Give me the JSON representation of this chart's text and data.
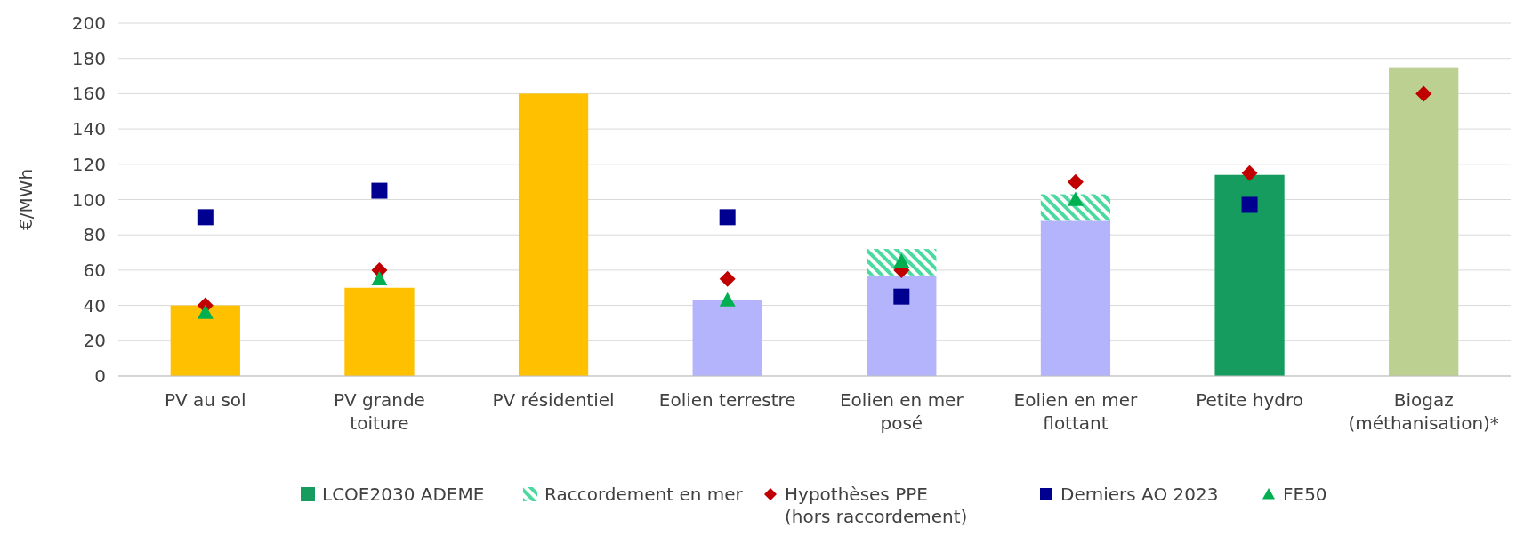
{
  "chart_data": {
    "type": "bar",
    "ylabel": "€/MWh",
    "categories": [
      "PV au sol",
      "PV grande\ntoiture",
      "PV résidentiel",
      "Eolien terrestre",
      "Eolien en mer\nposé",
      "Eolien en mer\nflottant",
      "Petite hydro",
      "Biogaz\n(méthanisation)*"
    ],
    "stacked": true,
    "ylim": [
      0,
      200
    ],
    "yticks": [
      0,
      20,
      40,
      60,
      80,
      100,
      120,
      140,
      160,
      180,
      200
    ],
    "grid": "y",
    "legend": "bottom",
    "series": [
      {
        "name": "LCOE2030 ADEME",
        "color": "#179c5f",
        "colors": [
          "#ffc000",
          "#ffc000",
          "#ffc000",
          "#b4b4fc",
          "#b4b4fc",
          "#b4b4fc",
          "#179c5f",
          "#bcd092"
        ],
        "values": [
          40,
          50,
          160,
          43,
          57,
          88,
          114,
          175
        ]
      },
      {
        "name": "Raccordement en mer",
        "color": "#4cd9a0",
        "values": [
          null,
          null,
          null,
          null,
          15,
          15,
          null,
          null
        ]
      },
      {
        "name": "Hypothèses PPE\n(hors raccordement)",
        "type": "scatter",
        "marker": "diamond",
        "color": "#c00000",
        "values": [
          40,
          60,
          null,
          55,
          60,
          110,
          115,
          160
        ]
      },
      {
        "name": "Derniers AO 2023",
        "type": "scatter",
        "marker": "square",
        "color": "#000090",
        "values": [
          90,
          105,
          null,
          90,
          45,
          null,
          97,
          null
        ]
      },
      {
        "name": "FE50",
        "type": "scatter",
        "marker": "triangle",
        "color": "#00b050",
        "values": [
          36,
          55,
          null,
          43,
          65,
          100,
          null,
          null
        ]
      }
    ]
  }
}
